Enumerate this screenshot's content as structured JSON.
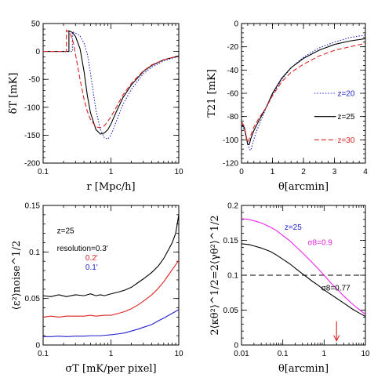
{
  "chart_data": [
    {
      "id": "p1",
      "type": "line",
      "xlabel": "r [Mpc/h]",
      "ylabel": "δT [mK]",
      "xscale": "log",
      "xlim": [
        0.1,
        10
      ],
      "ylim": [
        -200,
        50
      ],
      "xticks": [
        {
          "v": 0.1,
          "label": "0.1"
        },
        {
          "v": 1,
          "label": "1"
        },
        {
          "v": 10,
          "label": "10"
        }
      ],
      "yticks": [
        {
          "v": -200,
          "label": "-200"
        },
        {
          "v": -150,
          "label": "-150"
        },
        {
          "v": -100,
          "label": "-100"
        },
        {
          "v": -50,
          "label": "-50"
        },
        {
          "v": 0,
          "label": "0"
        },
        {
          "v": 50,
          "label": "50"
        }
      ],
      "series": [
        {
          "name": "z=20",
          "color": "#2222cc",
          "dash": "1.5,2",
          "x": [
            0.1,
            0.27,
            0.27,
            0.3,
            0.35,
            0.4,
            0.45,
            0.5,
            0.6,
            0.7,
            0.8,
            0.9,
            1.0,
            1.2,
            1.5,
            2.0,
            3.0,
            4.0,
            6.0,
            8.0,
            10.0
          ],
          "y": [
            0,
            0,
            35,
            33,
            28,
            15,
            -5,
            -40,
            -105,
            -140,
            -155,
            -157,
            -150,
            -125,
            -95,
            -68,
            -40,
            -28,
            -17,
            -12,
            -9
          ]
        },
        {
          "name": "z=25",
          "color": "#000000",
          "dash": "",
          "x": [
            0.1,
            0.24,
            0.24,
            0.27,
            0.3,
            0.35,
            0.4,
            0.45,
            0.5,
            0.6,
            0.7,
            0.8,
            0.9,
            1.0,
            1.2,
            1.5,
            2.0,
            3.0,
            4.0,
            6.0,
            8.0,
            10.0
          ],
          "y": [
            0,
            0,
            37,
            34,
            27,
            5,
            -35,
            -80,
            -110,
            -140,
            -148,
            -146,
            -140,
            -130,
            -108,
            -83,
            -60,
            -36,
            -25,
            -15,
            -11,
            -8
          ]
        },
        {
          "name": "z=30",
          "color": "#dd2222",
          "dash": "6,3",
          "x": [
            0.1,
            0.22,
            0.22,
            0.25,
            0.28,
            0.3,
            0.35,
            0.4,
            0.45,
            0.5,
            0.6,
            0.7,
            0.8,
            0.9,
            1.0,
            1.2,
            1.5,
            2.0,
            3.0,
            4.0,
            6.0,
            8.0,
            10.0
          ],
          "y": [
            0,
            0,
            38,
            33,
            15,
            -5,
            -50,
            -85,
            -108,
            -122,
            -135,
            -137,
            -133,
            -125,
            -117,
            -100,
            -78,
            -57,
            -35,
            -24,
            -15,
            -11,
            -9
          ]
        }
      ]
    },
    {
      "id": "p2",
      "type": "line",
      "xlabel": "θ[arcmin]",
      "ylabel": "T21 [mK]",
      "xscale": "linear",
      "xlim": [
        0,
        4
      ],
      "ylim": [
        -120,
        0
      ],
      "xticks": [
        {
          "v": 0,
          "label": "0"
        },
        {
          "v": 1,
          "label": "1"
        },
        {
          "v": 2,
          "label": "2"
        },
        {
          "v": 3,
          "label": "3"
        },
        {
          "v": 4,
          "label": "4"
        }
      ],
      "yticks": [
        {
          "v": -120,
          "label": "-120"
        },
        {
          "v": -100,
          "label": "-100"
        },
        {
          "v": -80,
          "label": "-80"
        },
        {
          "v": -60,
          "label": "-60"
        },
        {
          "v": -40,
          "label": "-40"
        },
        {
          "v": -20,
          "label": "-20"
        },
        {
          "v": 0,
          "label": "0"
        }
      ],
      "legend": [
        {
          "name": "z=20",
          "color": "#2222cc",
          "dash": "1.5,2",
          "y": -60
        },
        {
          "name": "z=25",
          "color": "#000000",
          "dash": "",
          "y": -80
        },
        {
          "name": "z=30",
          "color": "#dd2222",
          "dash": "6,3",
          "y": -100
        }
      ],
      "series": [
        {
          "name": "z=20",
          "color": "#2222cc",
          "dash": "1.5,2",
          "x": [
            0.02,
            0.1,
            0.18,
            0.25,
            0.3,
            0.35,
            0.45,
            0.6,
            0.8,
            1.0,
            1.3,
            1.6,
            2.0,
            2.5,
            3.0,
            3.5,
            4.0
          ],
          "y": [
            -88,
            -92,
            -100,
            -108,
            -109,
            -104,
            -95,
            -85,
            -72,
            -61,
            -48,
            -38,
            -29,
            -21,
            -16,
            -12,
            -10
          ]
        },
        {
          "name": "z=25",
          "color": "#000000",
          "dash": "",
          "x": [
            0.02,
            0.1,
            0.15,
            0.2,
            0.25,
            0.3,
            0.4,
            0.55,
            0.8,
            1.0,
            1.3,
            1.6,
            2.0,
            2.5,
            3.0,
            3.5,
            4.0
          ],
          "y": [
            -87,
            -90,
            -97,
            -104,
            -104,
            -99,
            -92,
            -84,
            -72,
            -60,
            -47,
            -38,
            -30,
            -23,
            -18,
            -15,
            -13
          ]
        },
        {
          "name": "z=30",
          "color": "#dd2222",
          "dash": "6,3",
          "x": [
            0.02,
            0.08,
            0.12,
            0.18,
            0.22,
            0.3,
            0.4,
            0.55,
            0.8,
            1.0,
            1.3,
            1.6,
            2.0,
            2.5,
            3.0,
            3.5,
            4.0
          ],
          "y": [
            -85,
            -88,
            -94,
            -102,
            -101,
            -96,
            -89,
            -82,
            -72,
            -62,
            -50,
            -42,
            -35,
            -28,
            -23,
            -20,
            -17
          ]
        }
      ]
    },
    {
      "id": "p3",
      "type": "line",
      "xlabel": "σT [mK/per pixel]",
      "ylabel": "⟨ε²⟩noise^1/2",
      "xscale": "log",
      "xlim": [
        0.1,
        10
      ],
      "ylim": [
        0,
        0.15
      ],
      "xticks": [
        {
          "v": 0.1,
          "label": "0.1"
        },
        {
          "v": 1,
          "label": "1"
        },
        {
          "v": 10,
          "label": "10"
        }
      ],
      "yticks": [
        {
          "v": 0,
          "label": "0"
        },
        {
          "v": 0.05,
          "label": "0.05"
        },
        {
          "v": 0.1,
          "label": "0.1"
        },
        {
          "v": 0.15,
          "label": "0.15"
        }
      ],
      "texts": [
        {
          "text": "z=25",
          "color": "#000000",
          "x": 0.16,
          "y": 0.12
        },
        {
          "text": "resolution=0.3′",
          "color": "#000000",
          "x": 0.16,
          "y": 0.101
        },
        {
          "text": "0.2′",
          "color": "#dd2222",
          "x": 0.42,
          "y": 0.091
        },
        {
          "text": "0.1′",
          "color": "#2222cc",
          "x": 0.42,
          "y": 0.081
        }
      ],
      "series": [
        {
          "name": "resolution=0.3′",
          "color": "#000000",
          "dash": "",
          "x": [
            0.1,
            0.13,
            0.17,
            0.22,
            0.3,
            0.4,
            0.5,
            0.6,
            0.7,
            0.8,
            1.0,
            1.3,
            1.6,
            2.0,
            2.5,
            3.0,
            4.0,
            5.0,
            6.0,
            7.0,
            8.0,
            9.0,
            10.0
          ],
          "y": [
            0.053,
            0.052,
            0.054,
            0.052,
            0.054,
            0.053,
            0.055,
            0.053,
            0.054,
            0.053,
            0.055,
            0.057,
            0.059,
            0.062,
            0.067,
            0.071,
            0.078,
            0.085,
            0.093,
            0.102,
            0.11,
            0.12,
            0.14
          ]
        },
        {
          "name": "0.2′",
          "color": "#dd2222",
          "dash": "",
          "x": [
            0.1,
            0.13,
            0.17,
            0.22,
            0.3,
            0.4,
            0.5,
            0.6,
            0.8,
            1.0,
            1.3,
            1.6,
            2.0,
            2.5,
            3.0,
            4.0,
            5.0,
            6.0,
            7.0,
            8.0,
            10.0
          ],
          "y": [
            0.03,
            0.031,
            0.03,
            0.031,
            0.031,
            0.031,
            0.032,
            0.031,
            0.032,
            0.032,
            0.034,
            0.036,
            0.039,
            0.043,
            0.047,
            0.054,
            0.061,
            0.068,
            0.075,
            0.081,
            0.091
          ]
        },
        {
          "name": "0.1′",
          "color": "#2222cc",
          "dash": "",
          "x": [
            0.1,
            0.13,
            0.17,
            0.22,
            0.3,
            0.4,
            0.5,
            0.7,
            1.0,
            1.3,
            1.6,
            2.0,
            2.5,
            3.0,
            4.0,
            5.0,
            6.0,
            8.0,
            10.0
          ],
          "y": [
            0.009,
            0.009,
            0.0095,
            0.009,
            0.0095,
            0.0095,
            0.01,
            0.01,
            0.011,
            0.012,
            0.013,
            0.015,
            0.017,
            0.019,
            0.022,
            0.026,
            0.029,
            0.034,
            0.038
          ]
        }
      ]
    },
    {
      "id": "p4",
      "type": "line",
      "xlabel": "θ[arcmin]",
      "ylabel": "2⟨κθ²⟩^1/2=2⟨γθ²⟩^1/2",
      "xscale": "log",
      "xlim": [
        0.01,
        10
      ],
      "ylim": [
        0,
        0.2
      ],
      "xticks": [
        {
          "v": 0.01,
          "label": "0.01"
        },
        {
          "v": 0.1,
          "label": "0.1"
        },
        {
          "v": 1,
          "label": "1"
        },
        {
          "v": 10,
          "label": "10"
        }
      ],
      "yticks": [
        {
          "v": 0,
          "label": "0"
        },
        {
          "v": 0.05,
          "label": "0.05"
        },
        {
          "v": 0.1,
          "label": "0.1"
        },
        {
          "v": 0.15,
          "label": "0.15"
        },
        {
          "v": 0.2,
          "label": "0.2"
        }
      ],
      "hline": {
        "y": 0.1,
        "color": "#000000",
        "dash": "7,4"
      },
      "arrow": {
        "x": 2.0,
        "color": "#dd2222",
        "y_from": 0.034,
        "y_to": 0.006
      },
      "texts": [
        {
          "text": "z=25",
          "color": "#2222cc",
          "x": 0.11,
          "y": 0.165
        },
        {
          "text": "σ8=0.9",
          "color": "#dd22dd",
          "x": 0.4,
          "y": 0.143
        },
        {
          "text": "σ8=0.77",
          "color": "#000000",
          "x": 0.85,
          "y": 0.078
        }
      ],
      "series": [
        {
          "name": "σ8=0.9",
          "color": "#ee22ee",
          "dash": "",
          "x": [
            0.01,
            0.015,
            0.02,
            0.03,
            0.05,
            0.07,
            0.1,
            0.15,
            0.2,
            0.3,
            0.5,
            0.7,
            1.0,
            1.5,
            2.0,
            3.0,
            5.0,
            7.0,
            10.0
          ],
          "y": [
            0.181,
            0.18,
            0.178,
            0.175,
            0.169,
            0.164,
            0.157,
            0.149,
            0.142,
            0.132,
            0.119,
            0.11,
            0.1,
            0.088,
            0.081,
            0.07,
            0.058,
            0.051,
            0.044
          ]
        },
        {
          "name": "σ8=0.77",
          "color": "#000000",
          "dash": "",
          "x": [
            0.01,
            0.015,
            0.02,
            0.03,
            0.05,
            0.07,
            0.1,
            0.15,
            0.2,
            0.3,
            0.5,
            0.7,
            1.0,
            1.5,
            2.0,
            3.0,
            5.0,
            7.0,
            10.0
          ],
          "y": [
            0.145,
            0.144,
            0.142,
            0.139,
            0.134,
            0.129,
            0.123,
            0.116,
            0.11,
            0.102,
            0.092,
            0.086,
            0.079,
            0.072,
            0.067,
            0.06,
            0.051,
            0.046,
            0.041
          ]
        }
      ]
    }
  ]
}
